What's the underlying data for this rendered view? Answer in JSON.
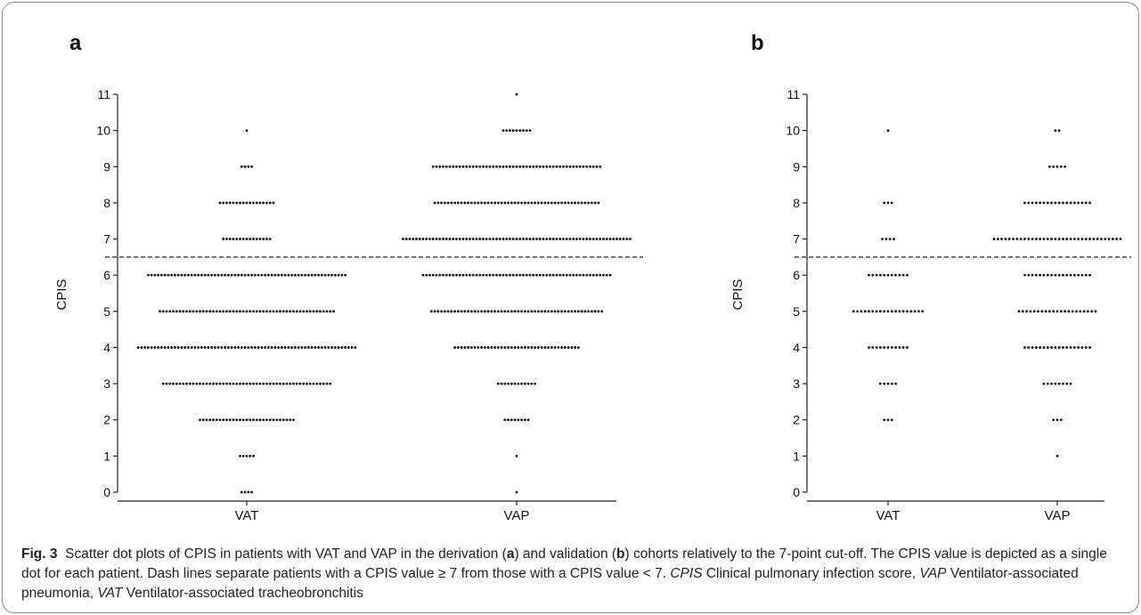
{
  "chart_data": [
    {
      "type": "scatter",
      "panel_label": "a",
      "ylabel": "CPIS",
      "xlabel": "",
      "ylim": [
        0,
        11
      ],
      "yticks": [
        0,
        1,
        2,
        3,
        4,
        5,
        6,
        7,
        8,
        9,
        10,
        11
      ],
      "categories": [
        "VAT",
        "VAP"
      ],
      "cutoff": 6.5,
      "counts": {
        "VAT": {
          "0": 4,
          "1": 5,
          "2": 29,
          "3": 51,
          "4": 66,
          "5": 53,
          "6": 60,
          "7": 15,
          "8": 17,
          "9": 4,
          "10": 1
        },
        "VAP": {
          "0": 1,
          "1": 1,
          "2": 8,
          "3": 12,
          "4": 38,
          "5": 52,
          "6": 57,
          "7": 69,
          "8": 50,
          "9": 51,
          "10": 9,
          "11": 1
        }
      }
    },
    {
      "type": "scatter",
      "panel_label": "b",
      "ylabel": "CPIS",
      "xlabel": "",
      "ylim": [
        0,
        11
      ],
      "yticks": [
        0,
        1,
        2,
        3,
        4,
        5,
        6,
        7,
        8,
        9,
        10,
        11
      ],
      "categories": [
        "VAT",
        "VAP"
      ],
      "cutoff": 6.5,
      "counts": {
        "VAT": {
          "2": 3,
          "3": 5,
          "4": 11,
          "5": 19,
          "6": 11,
          "7": 4,
          "8": 3,
          "10": 1
        },
        "VAP": {
          "1": 1,
          "2": 3,
          "3": 8,
          "4": 18,
          "5": 21,
          "6": 18,
          "7": 34,
          "8": 18,
          "9": 5,
          "10": 2
        }
      }
    }
  ],
  "caption": {
    "fig_label": "Fig. 3",
    "part1": "Scatter dot plots of CPIS in patients with VAT and VAP in the derivation (",
    "a": "a",
    "part2": ") and validation (",
    "b": "b",
    "part3": ") cohorts relatively to the 7-point cut-off. The CPIS value is depicted as a single dot for each patient. Dash lines separate patients with a CPIS value ≥ 7 from those with a CPIS value < 7. ",
    "abbr1": "CPIS",
    "def1": " Clinical pulmonary infection score, ",
    "abbr2": "VAP",
    "def2": " Ventilator-associated pneumonia, ",
    "abbr3": "VAT",
    "def3": " Ventilator-associated tracheobronchitis"
  }
}
